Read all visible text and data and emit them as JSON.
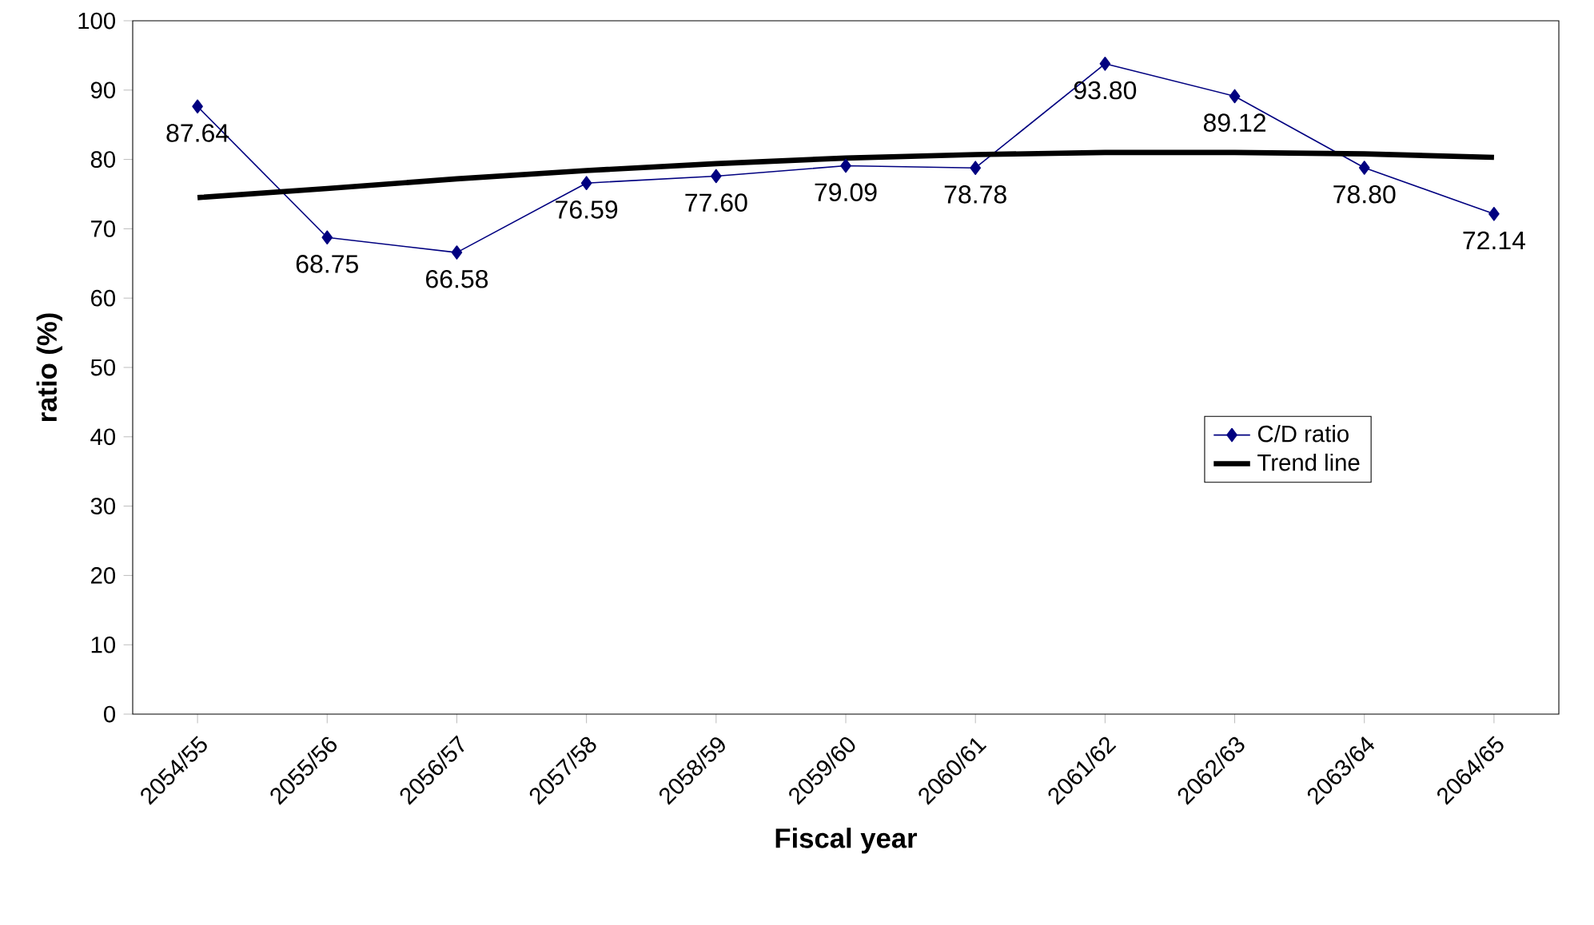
{
  "chart_data": {
    "type": "line",
    "xlabel": "Fiscal year",
    "ylabel": "ratio (%)",
    "categories": [
      "2054/55",
      "2055/56",
      "2056/57",
      "2057/58",
      "2058/59",
      "2059/60",
      "2060/61",
      "2061/62",
      "2062/63",
      "2063/64",
      "2064/65"
    ],
    "series": [
      {
        "name": "C/D ratio",
        "color": "#000080",
        "marker": "diamond",
        "values": [
          87.64,
          68.75,
          66.58,
          76.59,
          77.6,
          79.09,
          78.78,
          93.8,
          89.12,
          78.8,
          72.14
        ],
        "value_labels": [
          "87.64",
          "68.75",
          "66.58",
          "76.59",
          "77.60",
          "79.09",
          "78.78",
          "93.80",
          "89.12",
          "78.80",
          "72.14"
        ]
      },
      {
        "name": "Trend line",
        "color": "#000000",
        "marker": "none",
        "values": [
          74.5,
          75.8,
          77.2,
          78.4,
          79.4,
          80.2,
          80.7,
          81.0,
          81.0,
          80.8,
          80.3
        ]
      }
    ],
    "ylim": [
      0,
      100
    ],
    "yticks": [
      0,
      10,
      20,
      30,
      40,
      50,
      60,
      70,
      80,
      90,
      100
    ],
    "grid": false,
    "legend": "right"
  }
}
